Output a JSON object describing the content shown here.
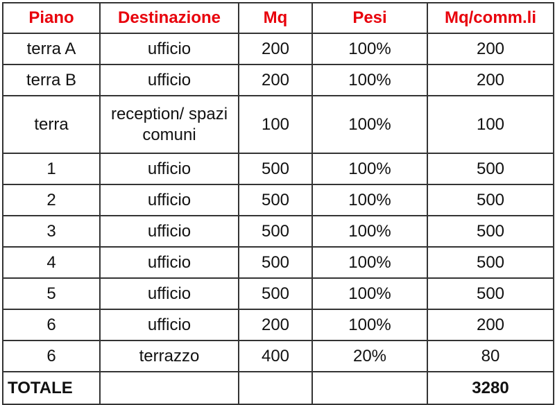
{
  "table": {
    "headers": [
      "Piano",
      "Destinazione",
      "Mq",
      "Pesi",
      "Mq/comm.li"
    ],
    "rows": [
      [
        "terra A",
        "ufficio",
        "200",
        "100%",
        "200"
      ],
      [
        "terra B",
        "ufficio",
        "200",
        "100%",
        "200"
      ],
      [
        "terra",
        "reception/ spazi comuni",
        "100",
        "100%",
        "100"
      ],
      [
        "1",
        "ufficio",
        "500",
        "100%",
        "500"
      ],
      [
        "2",
        "ufficio",
        "500",
        "100%",
        "500"
      ],
      [
        "3",
        "ufficio",
        "500",
        "100%",
        "500"
      ],
      [
        "4",
        "ufficio",
        "500",
        "100%",
        "500"
      ],
      [
        "5",
        "ufficio",
        "500",
        "100%",
        "500"
      ],
      [
        "6",
        "ufficio",
        "200",
        "100%",
        "200"
      ],
      [
        "6",
        "terrazzo",
        "400",
        "20%",
        "80"
      ]
    ],
    "total": {
      "label": "TOTALE",
      "value": "3280"
    }
  },
  "colors": {
    "header_text": "#e8000b",
    "border": "#333333"
  }
}
